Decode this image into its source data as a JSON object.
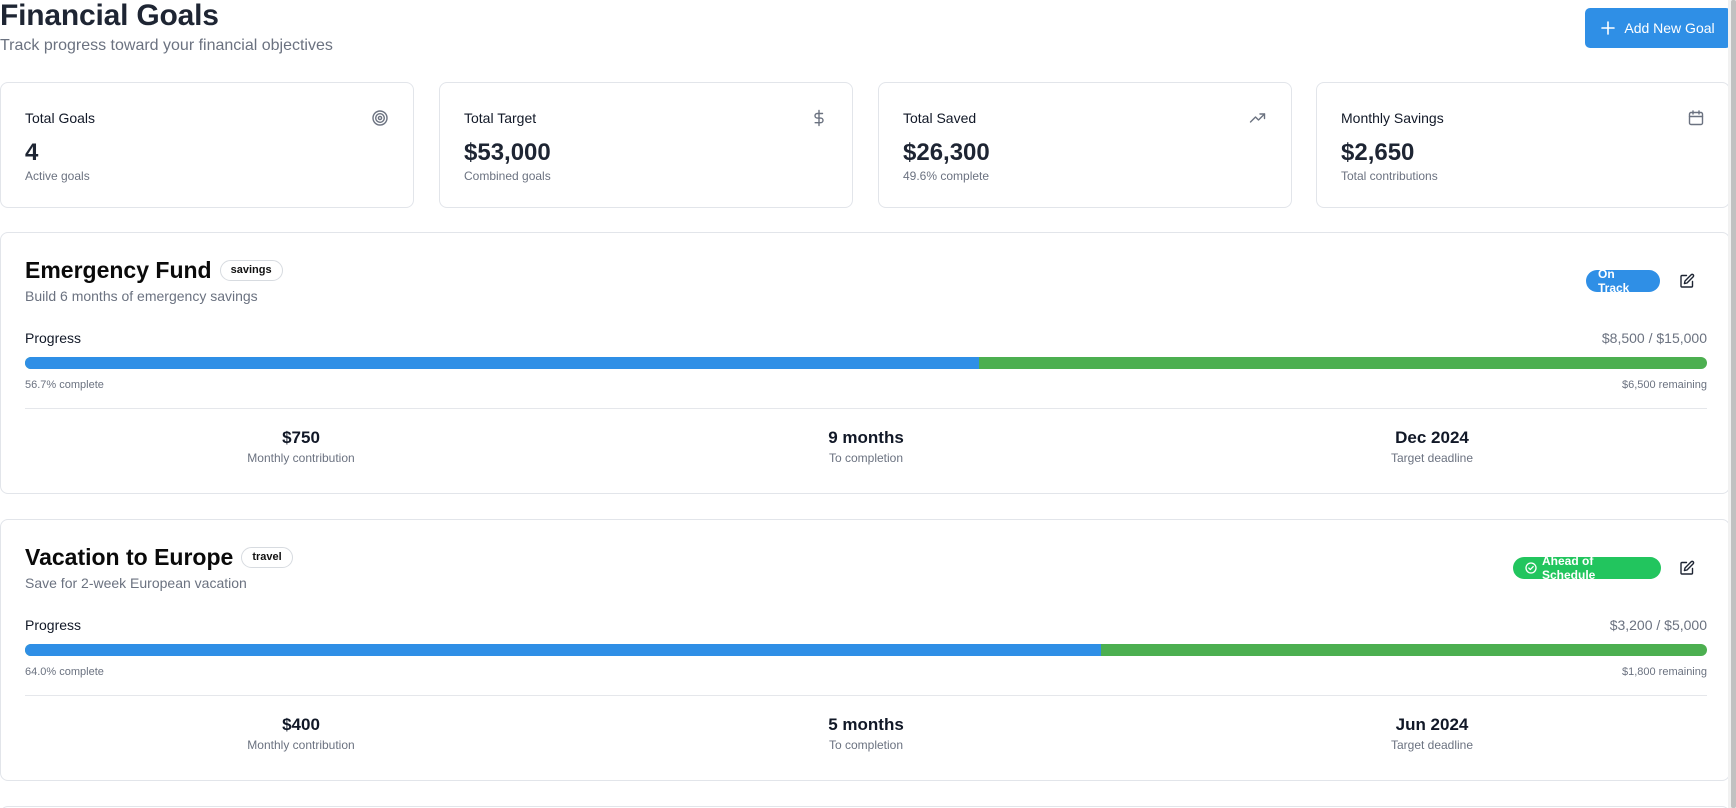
{
  "header": {
    "title": "Financial Goals",
    "subtitle": "Track progress toward your financial objectives",
    "add_button": "Add New Goal"
  },
  "stats": [
    {
      "label": "Total Goals",
      "value": "4",
      "note": "Active goals",
      "icon": "target-icon"
    },
    {
      "label": "Total Target",
      "value": "$53,000",
      "note": "Combined goals",
      "icon": "dollar-icon"
    },
    {
      "label": "Total Saved",
      "value": "$26,300",
      "note": "49.6% complete",
      "icon": "trending-up-icon"
    },
    {
      "label": "Monthly Savings",
      "value": "$2,650",
      "note": "Total contributions",
      "icon": "calendar-icon"
    }
  ],
  "goals": [
    {
      "title": "Emergency Fund",
      "tag": "savings",
      "description": "Build 6 months of emergency savings",
      "status": "On Track",
      "status_color": "#2f8fe6",
      "progress_label": "Progress",
      "amount": "$8,500 / $15,000",
      "progress": 0.567,
      "percent_text": "56.7% complete",
      "remaining": "$6,500 remaining",
      "monthly_value": "$750",
      "monthly_label": "Monthly contribution",
      "completion_value": "9 months",
      "completion_label": "To completion",
      "deadline_value": "Dec 2024",
      "deadline_label": "Target deadline"
    },
    {
      "title": "Vacation to Europe",
      "tag": "travel",
      "description": "Save for 2-week European vacation",
      "status": "Ahead of Schedule",
      "status_color": "#22c55e",
      "progress_label": "Progress",
      "amount": "$3,200 / $5,000",
      "progress": 0.64,
      "percent_text": "64.0% complete",
      "remaining": "$1,800 remaining",
      "monthly_value": "$400",
      "monthly_label": "Monthly contribution",
      "completion_value": "5 months",
      "completion_label": "To completion",
      "deadline_value": "Jun 2024",
      "deadline_label": "Target deadline"
    }
  ],
  "colors": {
    "primary": "#2f8fe6",
    "remaining_bar": "#4caf50",
    "ahead_badge": "#22c55e"
  }
}
